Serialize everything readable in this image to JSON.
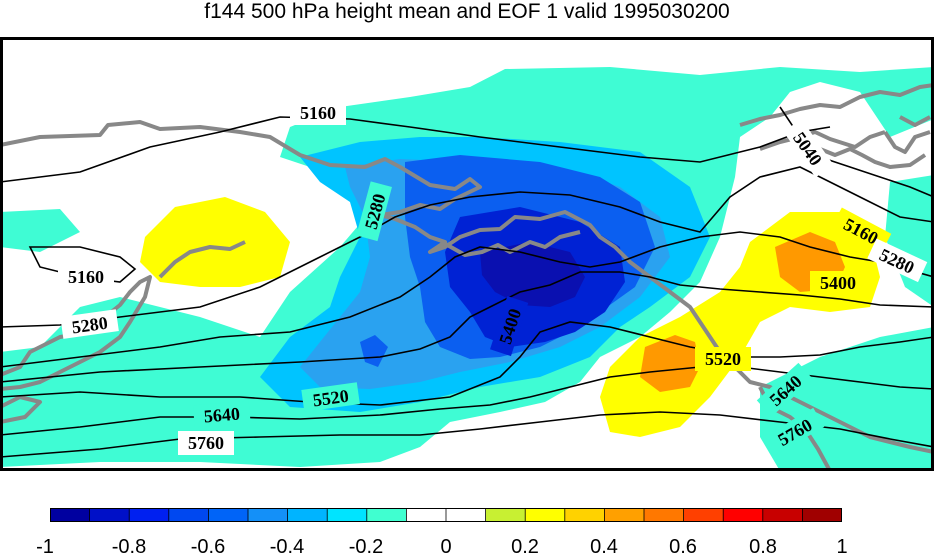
{
  "title": "f144 500 hPa height mean and EOF 1 valid 1995030200",
  "colors": {
    "fill_neg_01": "#3ffcd4",
    "fill_neg_02": "#00c4ff",
    "fill_neg_03": "#2aa2f0",
    "fill_neg_04": "#0b5ff0",
    "fill_neg_05": "#0022d4",
    "fill_neg_06": "#0a10b0",
    "fill_pos_01": "#ffff00",
    "fill_pos_02": "#ff9900",
    "coast": "#888888",
    "contour": "#000000"
  },
  "contour_labels": [
    "5160",
    "5040",
    "5280",
    "5160",
    "5160",
    "5280",
    "5400",
    "5400",
    "5520",
    "5280",
    "5520",
    "5640",
    "5640",
    "5760",
    "5760"
  ],
  "colorbar": {
    "colors": [
      "#0000a0",
      "#0010c8",
      "#0020f0",
      "#0048f0",
      "#0064f8",
      "#1490f8",
      "#00b4ff",
      "#00e4ff",
      "#40ffd0",
      "#ffffff",
      "#ffffff",
      "#c8f032",
      "#ffff00",
      "#ffd200",
      "#ffa000",
      "#ff7800",
      "#ff4000",
      "#ff0000",
      "#c80000",
      "#a00000"
    ],
    "tick_labels": [
      "-1",
      "-0.8",
      "-0.6",
      "-0.4",
      "-0.2",
      "0",
      "0.2",
      "0.4",
      "0.6",
      "0.8",
      "1"
    ]
  }
}
